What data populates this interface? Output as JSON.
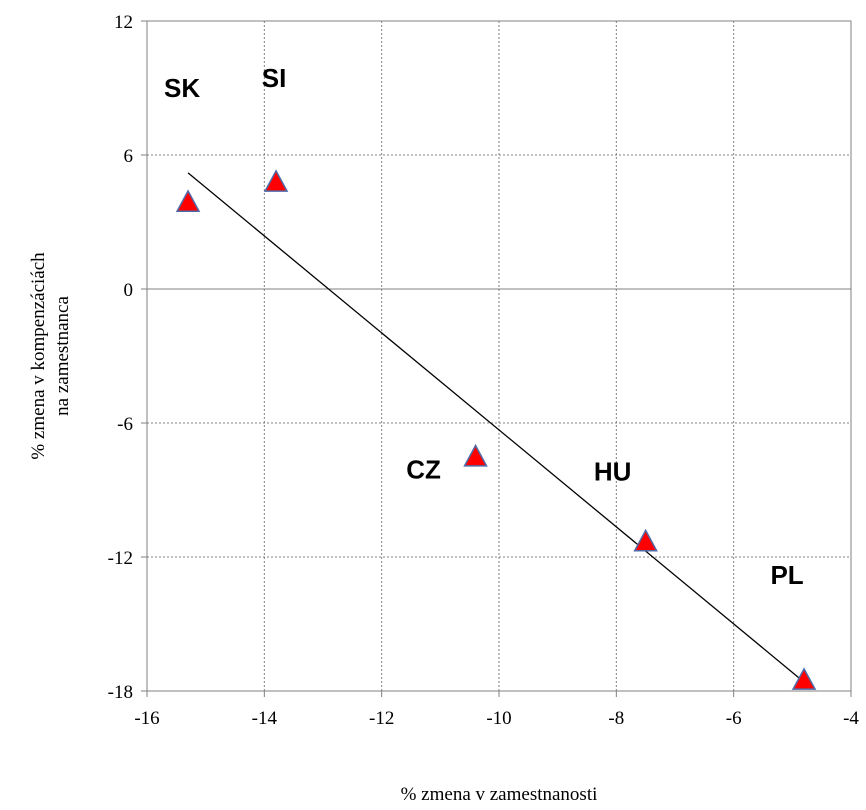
{
  "chart_data": {
    "type": "scatter",
    "xlabel": "% zmena v zamestnanosti",
    "ylabel_lines": [
      "% zmena v kompenzáciách",
      "na zamestnanca"
    ],
    "xlim": [
      -16,
      -4
    ],
    "ylim": [
      -18,
      12
    ],
    "x_ticks": [
      "-16",
      "-14",
      "-12",
      "-10",
      "-8",
      "-6",
      "-4"
    ],
    "y_ticks": [
      "12",
      "6",
      "0",
      "-6",
      "-12",
      "-18"
    ],
    "grid": true,
    "marker": "triangle",
    "colors": {
      "marker_fill": "#ff0000",
      "marker_stroke": "#4f6ba8",
      "trendline": "#000000",
      "grid": "#808080"
    },
    "points": [
      {
        "label": "SK",
        "x": -15.3,
        "y": 3.9
      },
      {
        "label": "SI",
        "x": -13.8,
        "y": 4.8
      },
      {
        "label": "CZ",
        "x": -10.4,
        "y": -7.5
      },
      {
        "label": "HU",
        "x": -7.5,
        "y": -11.3
      },
      {
        "label": "PL",
        "x": -4.8,
        "y": -17.5
      }
    ],
    "trendline": {
      "x": [
        -15.3,
        -4.8
      ],
      "y": [
        5.2,
        -17.6
      ]
    }
  }
}
